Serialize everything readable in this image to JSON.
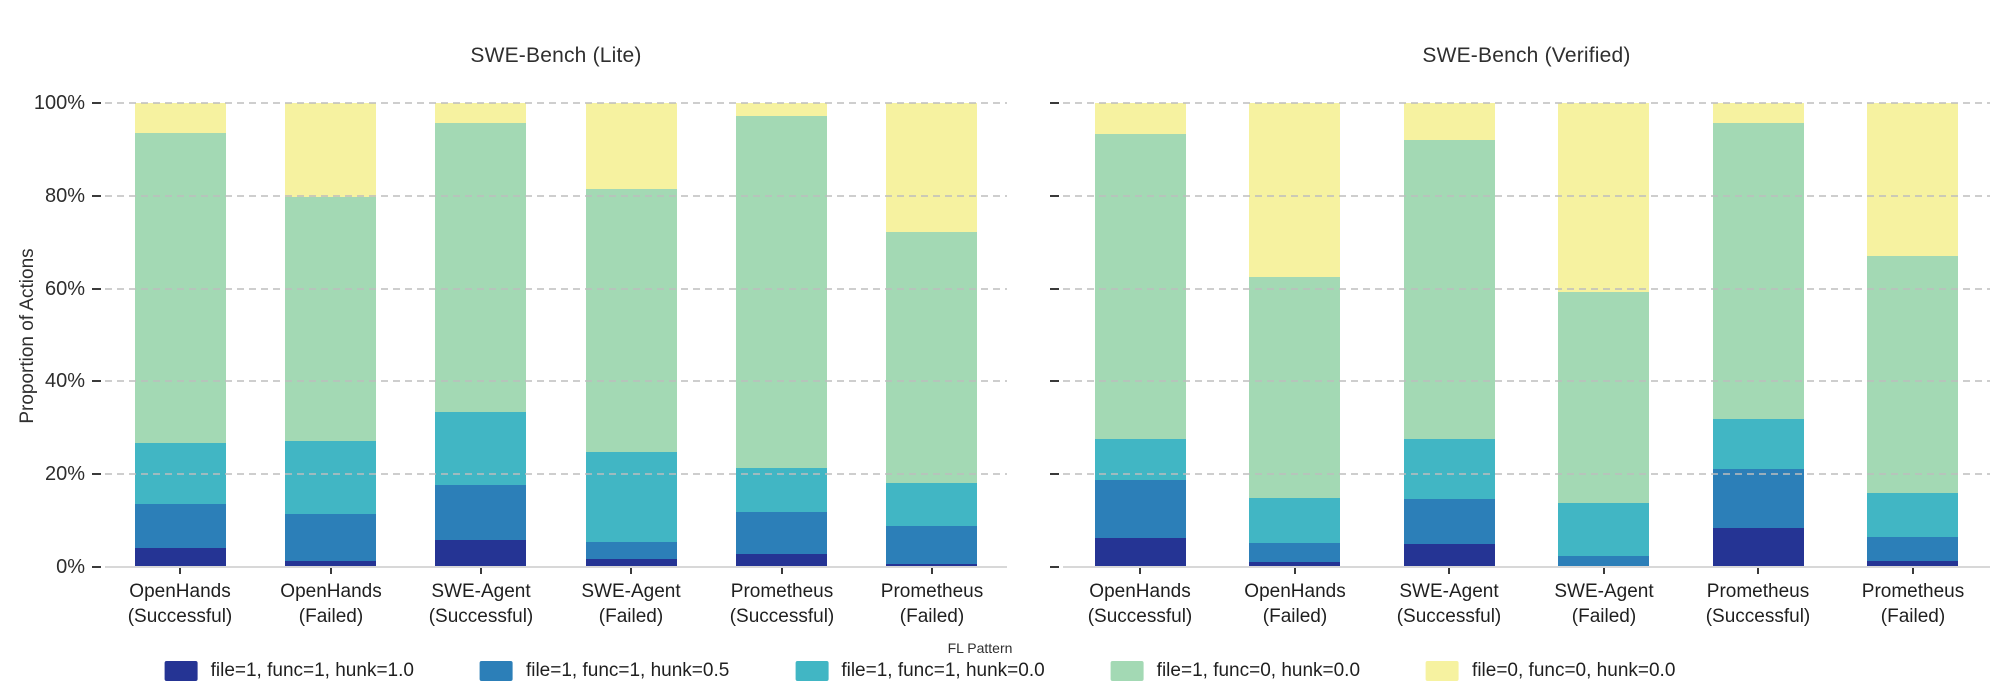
{
  "ylabel": "Proportion of Actions",
  "titles": {
    "left": "SWE-Bench (Lite)",
    "right": "SWE-Bench (Verified)"
  },
  "legend": {
    "title": "FL Pattern",
    "entries": [
      {
        "label": "file=1, func=1, hunk=1.0",
        "color": "#253494"
      },
      {
        "label": "file=1, func=1, hunk=0.5",
        "color": "#2c7fb8"
      },
      {
        "label": "file=1, func=1, hunk=0.0",
        "color": "#41b6c4"
      },
      {
        "label": "file=1, func=0, hunk=0.0",
        "color": "#a3d9b4"
      },
      {
        "label": "file=0, func=0, hunk=0.0",
        "color": "#f6f2a0"
      }
    ]
  },
  "chart_data": [
    {
      "type": "bar",
      "stacked": true,
      "title": "SWE-Bench (Lite)",
      "ylabel": "Proportion of Actions",
      "ylim": [
        0,
        100
      ],
      "grid": "horizontal-dashed",
      "legend_position": "bottom",
      "yticks": [
        {
          "value": 0,
          "label": "0%"
        },
        {
          "value": 20,
          "label": "20%"
        },
        {
          "value": 40,
          "label": "40%"
        },
        {
          "value": 60,
          "label": "60%"
        },
        {
          "value": 80,
          "label": "80%"
        },
        {
          "value": 100,
          "label": "100%"
        }
      ],
      "show_ytick_labels": true,
      "categories": [
        [
          "OpenHands",
          "(Successful)"
        ],
        [
          "OpenHands",
          "(Failed)"
        ],
        [
          "SWE-Agent",
          "(Successful)"
        ],
        [
          "SWE-Agent",
          "(Failed)"
        ],
        [
          "Prometheus",
          "(Successful)"
        ],
        [
          "Prometheus",
          "(Failed)"
        ]
      ],
      "series": [
        {
          "name": "file=1, func=1, hunk=1.0",
          "color": "#253494",
          "values": [
            4.0,
            1.2,
            5.9,
            1.8,
            2.8,
            0.7
          ]
        },
        {
          "name": "file=1, func=1, hunk=0.5",
          "color": "#2c7fb8",
          "values": [
            9.5,
            10.2,
            11.8,
            3.7,
            9.0,
            8.2
          ]
        },
        {
          "name": "file=1, func=1, hunk=0.0",
          "color": "#41b6c4",
          "values": [
            13.2,
            15.8,
            15.8,
            19.3,
            9.6,
            9.2
          ]
        },
        {
          "name": "file=1, func=0, hunk=0.0",
          "color": "#a3d9b4",
          "values": [
            66.8,
            52.6,
            62.3,
            56.6,
            75.9,
            54.2
          ]
        },
        {
          "name": "file=0, func=0, hunk=0.0",
          "color": "#f6f2a0",
          "values": [
            6.5,
            20.2,
            4.2,
            18.6,
            2.7,
            27.7
          ]
        }
      ]
    },
    {
      "type": "bar",
      "stacked": true,
      "title": "SWE-Bench (Verified)",
      "ylabel": "Proportion of Actions",
      "ylim": [
        0,
        100
      ],
      "grid": "horizontal-dashed",
      "legend_position": "bottom",
      "yticks": [
        {
          "value": 0,
          "label": "0%"
        },
        {
          "value": 20,
          "label": "20%"
        },
        {
          "value": 40,
          "label": "40%"
        },
        {
          "value": 60,
          "label": "60%"
        },
        {
          "value": 80,
          "label": "80%"
        },
        {
          "value": 100,
          "label": "100%"
        }
      ],
      "show_ytick_labels": false,
      "categories": [
        [
          "OpenHands",
          "(Successful)"
        ],
        [
          "OpenHands",
          "(Failed)"
        ],
        [
          "SWE-Agent",
          "(Successful)"
        ],
        [
          "SWE-Agent",
          "(Failed)"
        ],
        [
          "Prometheus",
          "(Successful)"
        ],
        [
          "Prometheus",
          "(Failed)"
        ]
      ],
      "series": [
        {
          "name": "file=1, func=1, hunk=1.0",
          "color": "#253494",
          "values": [
            6.3,
            1.0,
            5.0,
            0.0,
            8.5,
            1.4
          ]
        },
        {
          "name": "file=1, func=1, hunk=0.5",
          "color": "#2c7fb8",
          "values": [
            12.5,
            4.2,
            9.7,
            2.4,
            12.6,
            5.1
          ]
        },
        {
          "name": "file=1, func=1, hunk=0.0",
          "color": "#41b6c4",
          "values": [
            8.9,
            9.7,
            13.0,
            11.3,
            10.8,
            9.4
          ]
        },
        {
          "name": "file=1, func=0, hunk=0.0",
          "color": "#a3d9b4",
          "values": [
            65.6,
            47.7,
            64.3,
            45.6,
            63.7,
            51.1
          ]
        },
        {
          "name": "file=0, func=0, hunk=0.0",
          "color": "#f6f2a0",
          "values": [
            6.7,
            37.4,
            8.0,
            40.7,
            4.4,
            33.0
          ]
        }
      ]
    }
  ]
}
